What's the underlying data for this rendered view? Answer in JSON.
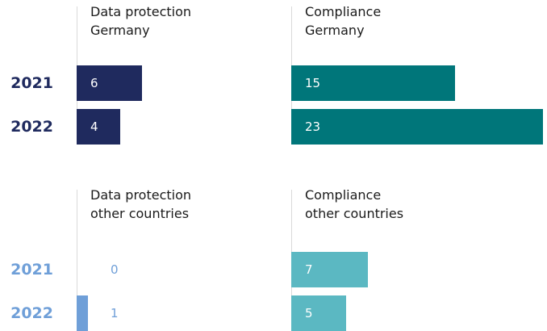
{
  "chart_data": [
    {
      "type": "bar",
      "title": "Data protection\nGermany",
      "categories": [
        "2021",
        "2022"
      ],
      "values": [
        6,
        4
      ],
      "color": "#1f2a5e",
      "xlim": [
        0,
        23
      ]
    },
    {
      "type": "bar",
      "title": "Compliance\nGermany",
      "values": [
        15,
        23
      ],
      "color": "#00767a",
      "xlim": [
        0,
        23
      ]
    },
    {
      "type": "bar",
      "title": "Data protection\nother countries",
      "categories": [
        "2021",
        "2022"
      ],
      "values": [
        0,
        1
      ],
      "color": "#6f9fd8",
      "xlim": [
        0,
        23
      ]
    },
    {
      "type": "bar",
      "title": "Compliance\nother countries",
      "values": [
        7,
        5
      ],
      "color": "#5bb8c2",
      "xlim": [
        0,
        23
      ]
    }
  ]
}
